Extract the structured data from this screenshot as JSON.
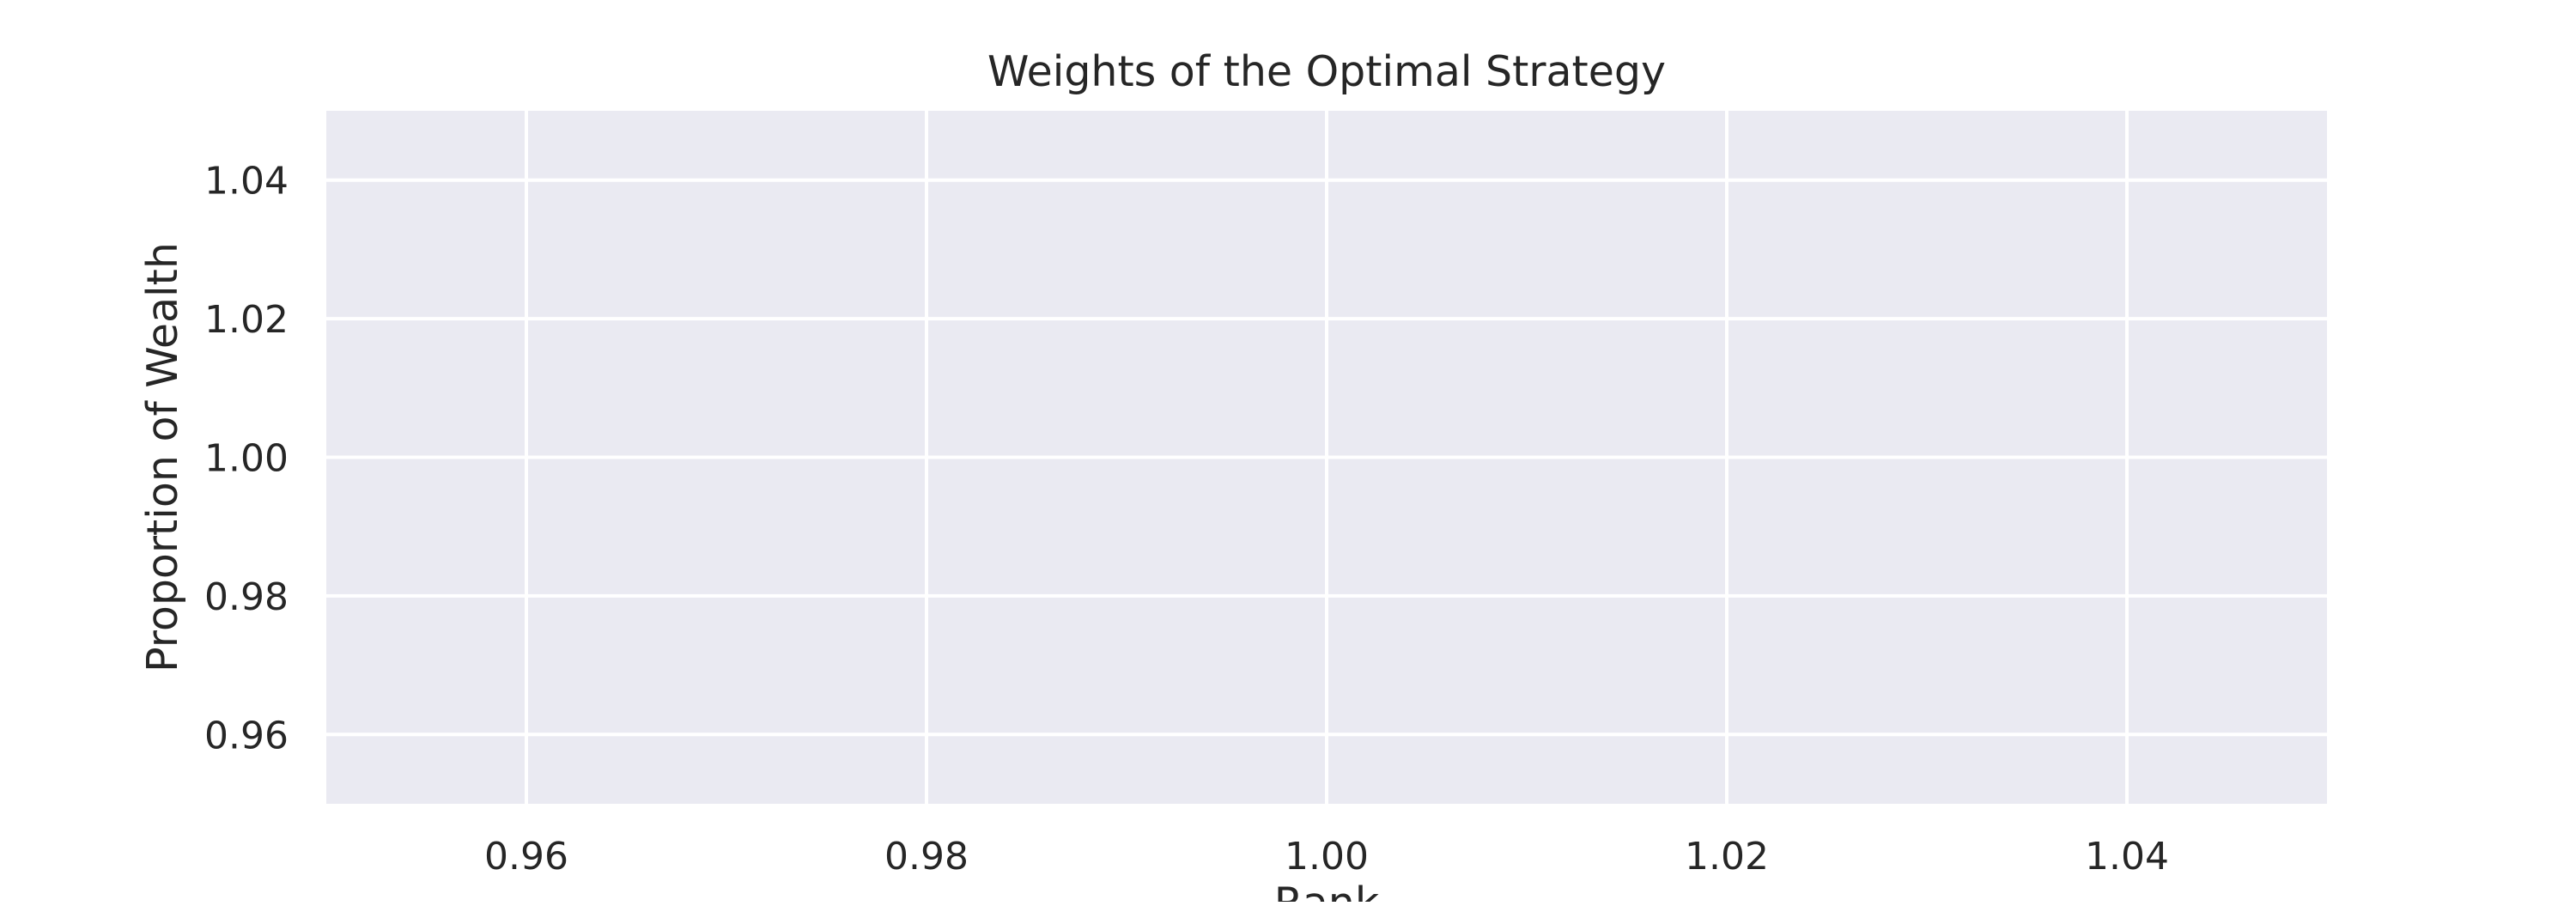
{
  "chart_data": {
    "type": "line",
    "title": "Weights of the Optimal Strategy",
    "xlabel": "Rank",
    "ylabel": "Proportion of Wealth",
    "xlim": [
      0.95,
      1.05
    ],
    "ylim": [
      0.95,
      1.05
    ],
    "x_ticks": [
      0.96,
      0.98,
      1.0,
      1.02,
      1.04
    ],
    "x_tick_labels": [
      "0.96",
      "0.98",
      "1.00",
      "1.02",
      "1.04"
    ],
    "y_ticks": [
      0.96,
      0.98,
      1.0,
      1.02,
      1.04
    ],
    "y_tick_labels": [
      "0.96",
      "0.98",
      "1.00",
      "1.02",
      "1.04"
    ],
    "series": [],
    "grid": true,
    "colors": {
      "plot_background": "#eaeaf2",
      "grid": "#ffffff",
      "text": "#262626"
    }
  }
}
